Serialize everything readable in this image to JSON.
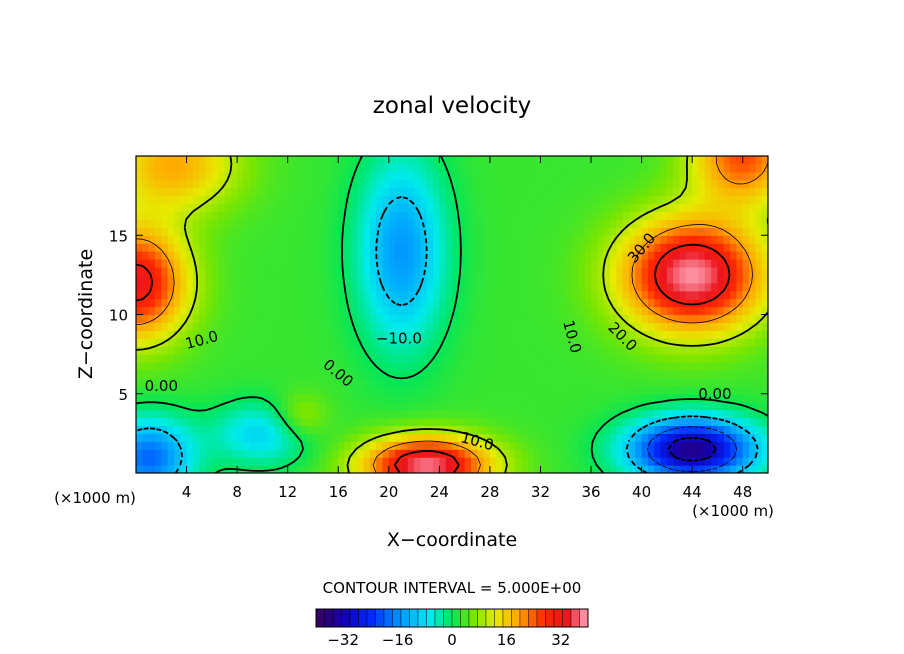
{
  "chart_data": {
    "type": "heatmap",
    "title": "zonal velocity",
    "xlabel": "X−coordinate",
    "ylabel": "Z−coordinate",
    "x_unit_label_left": "(×1000 m)",
    "x_unit_label_right": "(×1000 m)",
    "xlim": [
      0,
      50
    ],
    "ylim": [
      0,
      20
    ],
    "x_ticks": [
      4,
      8,
      12,
      16,
      20,
      24,
      28,
      32,
      36,
      40,
      44,
      48
    ],
    "y_ticks": [
      5,
      10,
      15
    ],
    "contour_interval_text": "CONTOUR INTERVAL = 5.000E+00",
    "contour_labels": [
      {
        "text": "30.0",
        "x": 40,
        "y": 14.2,
        "rot": -50
      },
      {
        "text": "20.0",
        "x": 38.5,
        "y": 8.6,
        "rot": 45
      },
      {
        "text": "10.0",
        "x": 34.5,
        "y": 8.6,
        "rot": 75
      },
      {
        "text": "10.0",
        "x": 5.2,
        "y": 8.4,
        "rot": -15
      },
      {
        "text": "10.0",
        "x": 27,
        "y": 2.0,
        "rot": 15
      },
      {
        "text": "−10.0",
        "x": 20.8,
        "y": 8.5,
        "rot": 0
      },
      {
        "text": "0.00",
        "x": 16,
        "y": 6.3,
        "rot": 40
      },
      {
        "text": "0.00",
        "x": 2.0,
        "y": 5.5,
        "rot": 0
      },
      {
        "text": "0.00",
        "x": 45.8,
        "y": 5.0,
        "rot": 0
      }
    ],
    "colorbar": {
      "min": -40,
      "max": 40,
      "tick_labels": [
        {
          "value": -32,
          "text": "−32"
        },
        {
          "value": -16,
          "text": "−16"
        },
        {
          "value": 0,
          "text": "0"
        },
        {
          "value": 16,
          "text": "16"
        },
        {
          "value": 32,
          "text": "32"
        }
      ]
    },
    "field_features": [
      {
        "x": 44,
        "y": 12.5,
        "value": 36,
        "sx": 5.5,
        "sy": 3.5
      },
      {
        "x": 0,
        "y": 12,
        "value": 30,
        "sx": 4,
        "sy": 3.5
      },
      {
        "x": 23,
        "y": 0.5,
        "value": 35,
        "sx": 5,
        "sy": 1.8
      },
      {
        "x": 48,
        "y": 20,
        "value": 22,
        "sx": 4,
        "sy": 3
      },
      {
        "x": 3,
        "y": 19.5,
        "value": 16,
        "sx": 5,
        "sy": 3
      },
      {
        "x": 21,
        "y": 14,
        "value": -18,
        "sx": 3.5,
        "sy": 6
      },
      {
        "x": 44,
        "y": 1.5,
        "value": -38,
        "sx": 5,
        "sy": 2
      },
      {
        "x": 1,
        "y": 1,
        "value": -22,
        "sx": 3.5,
        "sy": 2.5
      },
      {
        "x": 10,
        "y": 2.5,
        "value": -12,
        "sx": 4,
        "sy": 2
      },
      {
        "x": 13,
        "y": 3.5,
        "value": 8,
        "sx": 2.2,
        "sy": 1.5
      }
    ],
    "contour_levels": [
      -30,
      -20,
      -10,
      0,
      10,
      20,
      30
    ]
  }
}
